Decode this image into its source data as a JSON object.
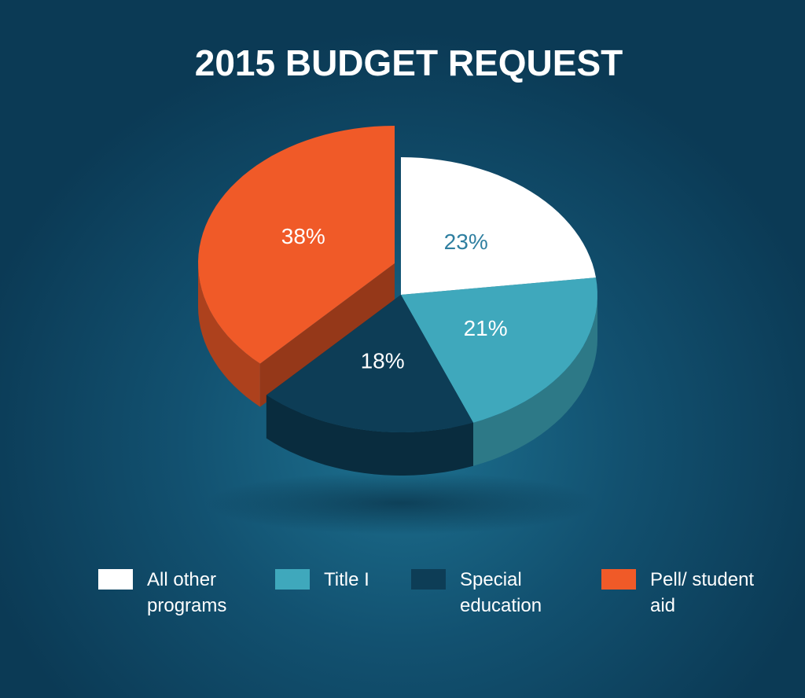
{
  "chart_data": {
    "type": "pie",
    "title": "2015 BUDGET REQUEST",
    "categories": [
      "All other programs",
      "Title I",
      "Special education",
      "Pell/ student aid"
    ],
    "values": [
      23,
      21,
      18,
      38
    ],
    "value_labels": [
      "23%",
      "21%",
      "18%",
      "38%"
    ],
    "colors": [
      "#ffffff",
      "#3fa8bc",
      "#0d3d56",
      "#f05a28"
    ],
    "legend": "bottom"
  }
}
